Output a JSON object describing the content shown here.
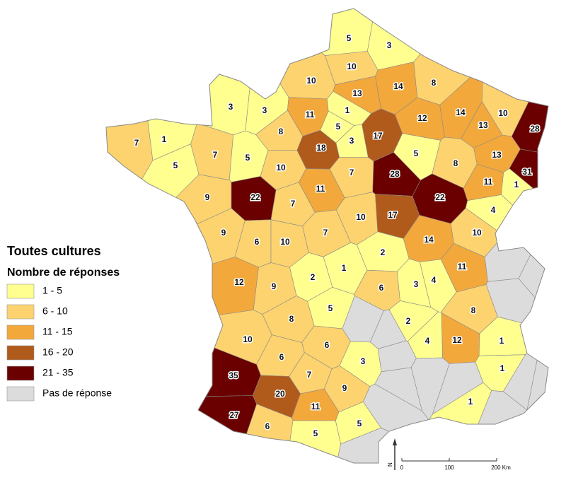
{
  "legend": {
    "title": "Toutes cultures",
    "subtitle": "Nombre de réponses",
    "classes": [
      {
        "label": "1 - 5",
        "color": "#ffff8f"
      },
      {
        "label": "6 - 10",
        "color": "#fcd36e"
      },
      {
        "label": "11 - 15",
        "color": "#f3a83b"
      },
      {
        "label": "16 - 20",
        "color": "#b05a1c"
      },
      {
        "label": "21 - 35",
        "color": "#6a0000"
      },
      {
        "label": "Pas de réponse",
        "color": "#dcdcdc"
      }
    ]
  },
  "departments": [
    5,
    3,
    10,
    10,
    13,
    14,
    8,
    3,
    3,
    11,
    1,
    5,
    3,
    17,
    12,
    14,
    10,
    13,
    28,
    1,
    7,
    5,
    7,
    5,
    8,
    10,
    18,
    7,
    28,
    5,
    8,
    13,
    31,
    1,
    9,
    22,
    7,
    11,
    10,
    17,
    22,
    11,
    4,
    9,
    6,
    10,
    7,
    2,
    14,
    10,
    1,
    2,
    11,
    12,
    9,
    6,
    3,
    4,
    5,
    8,
    2,
    8,
    10,
    6,
    3,
    4,
    12,
    1,
    6,
    1,
    35,
    7,
    9,
    20,
    11,
    27,
    1,
    6,
    5,
    5
  ],
  "scale_bar": {
    "ticks": [
      "0",
      "100",
      "200 Km"
    ]
  },
  "north_arrow": "N"
}
